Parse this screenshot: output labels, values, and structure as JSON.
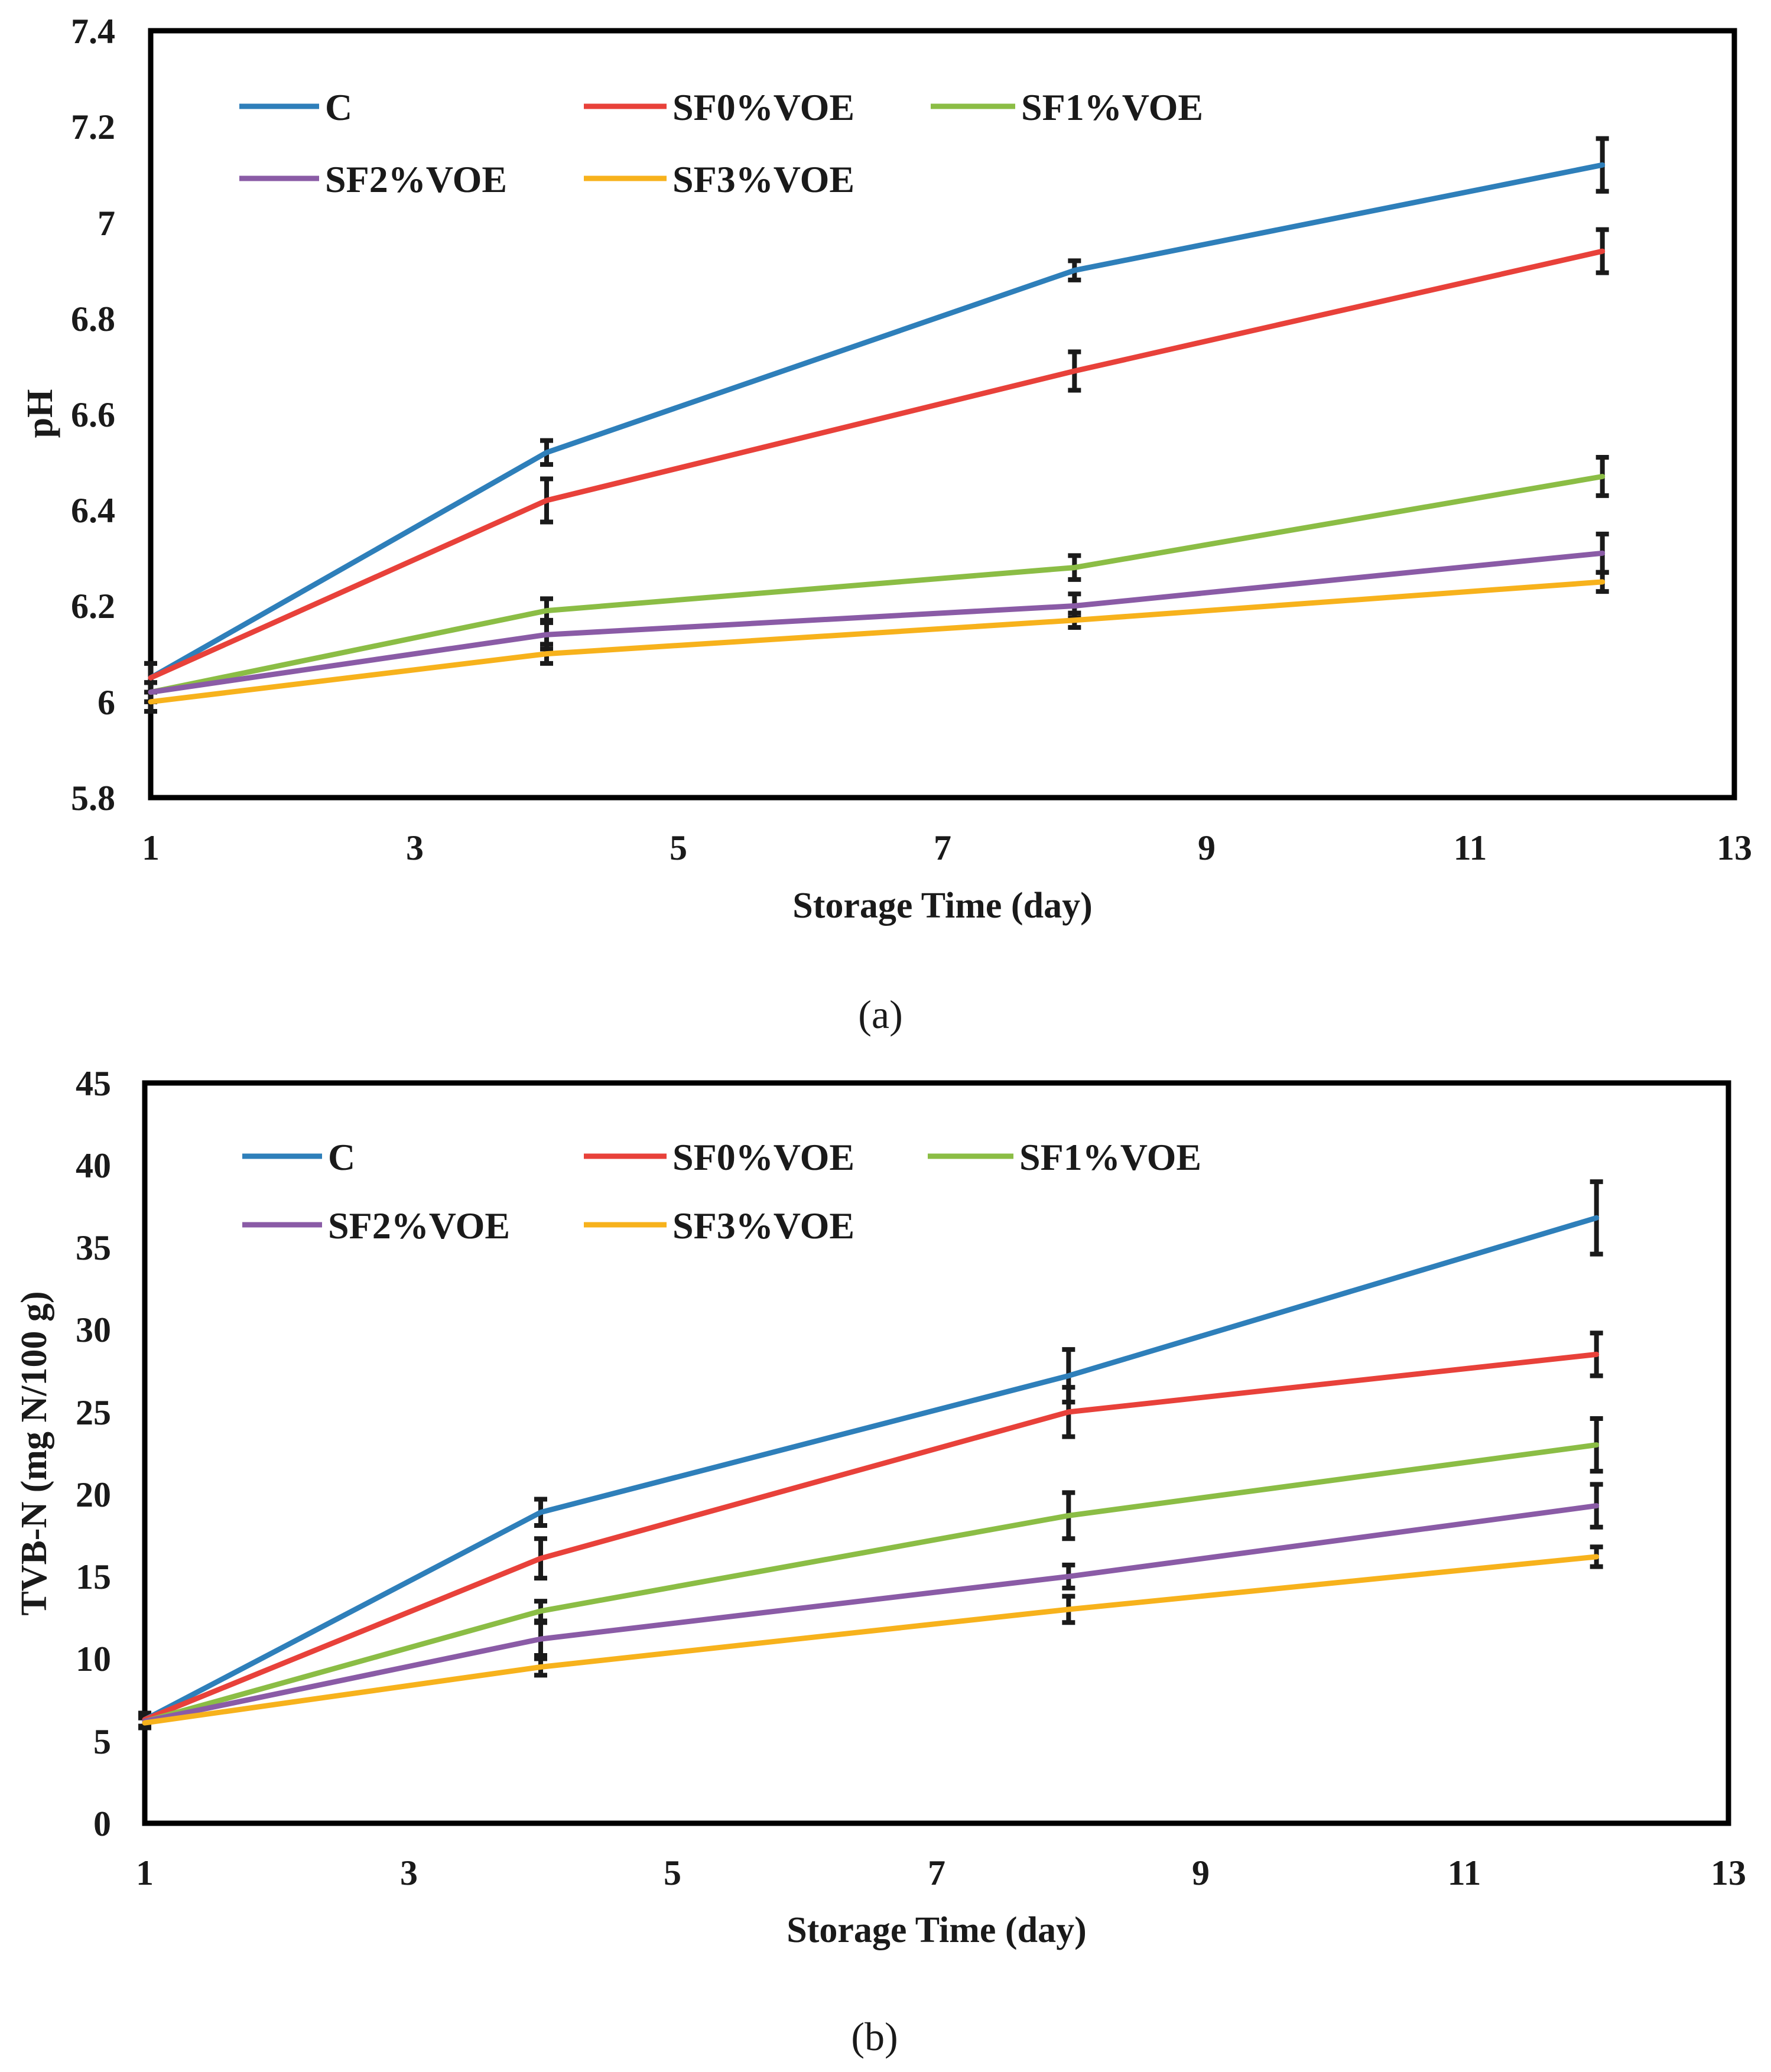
{
  "chart_data": [
    {
      "type": "line",
      "panel_label": "(a)",
      "title": "",
      "xlabel": "Storage Time (day)",
      "ylabel": "pH",
      "xlim": [
        1,
        13
      ],
      "ylim": [
        5.8,
        7.4
      ],
      "xticks": [
        "1",
        "3",
        "5",
        "7",
        "9",
        "11",
        "13"
      ],
      "yticks": [
        "5.8",
        "6",
        "6.2",
        "6.4",
        "6.6",
        "6.8",
        "7",
        "7.2",
        "7.4"
      ],
      "x": [
        1,
        4,
        8,
        12
      ],
      "legend_position": "top-left",
      "series": [
        {
          "name": "C",
          "color": "#2e7fba",
          "values": [
            6.05,
            6.52,
            6.9,
            7.12
          ],
          "errors": [
            0.03,
            0.025,
            0.02,
            0.055
          ]
        },
        {
          "name": "SF0%VOE",
          "color": "#e8413a",
          "values": [
            6.05,
            6.42,
            6.69,
            6.94
          ],
          "errors": [
            0.03,
            0.045,
            0.04,
            0.045
          ]
        },
        {
          "name": "SF1%VOE",
          "color": "#8bbd45",
          "values": [
            6.02,
            6.19,
            6.28,
            6.47
          ],
          "errors": [
            0.02,
            0.025,
            0.025,
            0.04
          ]
        },
        {
          "name": "SF2%VOE",
          "color": "#8a5ba6",
          "values": [
            6.02,
            6.14,
            6.2,
            6.31
          ],
          "errors": [
            0.02,
            0.03,
            0.025,
            0.04
          ]
        },
        {
          "name": "SF3%VOE",
          "color": "#f7b21c",
          "values": [
            6.0,
            6.1,
            6.17,
            6.25
          ],
          "errors": [
            0.02,
            0.02,
            0.015,
            0.02
          ]
        }
      ]
    },
    {
      "type": "line",
      "panel_label": "(b)",
      "title": "",
      "xlabel": "Storage Time (day)",
      "ylabel": "TVB-N (mg N/100 g)",
      "xlim": [
        1,
        13
      ],
      "ylim": [
        0,
        45
      ],
      "xticks": [
        "1",
        "3",
        "5",
        "7",
        "9",
        "11",
        "13"
      ],
      "yticks": [
        "0",
        "5",
        "10",
        "15",
        "20",
        "25",
        "30",
        "35",
        "40",
        "45"
      ],
      "x": [
        1,
        4,
        8,
        12
      ],
      "legend_position": "top-left",
      "series": [
        {
          "name": "C",
          "color": "#2e7fba",
          "values": [
            6.3,
            18.9,
            27.2,
            36.8
          ],
          "errors": [
            0.4,
            0.8,
            1.6,
            2.2
          ]
        },
        {
          "name": "SF0%VOE",
          "color": "#e8413a",
          "values": [
            6.3,
            16.1,
            25.0,
            28.5
          ],
          "errors": [
            0.4,
            1.2,
            1.5,
            1.3
          ]
        },
        {
          "name": "SF1%VOE",
          "color": "#8bbd45",
          "values": [
            6.2,
            12.9,
            18.7,
            23.0
          ],
          "errors": [
            0.3,
            0.6,
            1.4,
            1.6
          ]
        },
        {
          "name": "SF2%VOE",
          "color": "#8a5ba6",
          "values": [
            6.2,
            11.2,
            15.0,
            19.3
          ],
          "errors": [
            0.3,
            1.0,
            0.7,
            1.3
          ]
        },
        {
          "name": "SF3%VOE",
          "color": "#f7b21c",
          "values": [
            6.1,
            9.5,
            13.0,
            16.2
          ],
          "errors": [
            0.3,
            0.5,
            0.8,
            0.6
          ]
        }
      ]
    }
  ]
}
